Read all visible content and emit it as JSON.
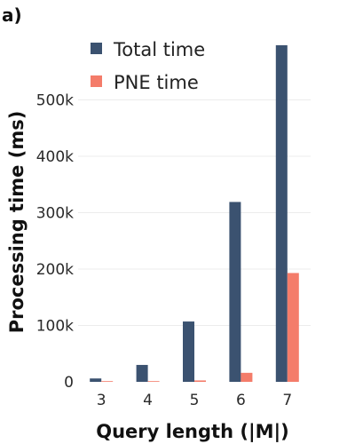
{
  "panel_label": "a)",
  "chart_data": {
    "type": "bar",
    "categories": [
      "3",
      "4",
      "5",
      "6",
      "7"
    ],
    "series": [
      {
        "name": "Total time",
        "values": [
          6000,
          30000,
          107000,
          319000,
          597000
        ],
        "color": "#3b5270"
      },
      {
        "name": "PNE time",
        "values": [
          300,
          1000,
          2500,
          16000,
          193000
        ],
        "color": "#f47c6a"
      }
    ],
    "title": "",
    "xlabel": "Query length (|M|)",
    "ylabel": "Processing time (ms)",
    "ylim": [
      0,
      600000
    ],
    "yticks": [
      0,
      100000,
      200000,
      300000,
      400000,
      500000
    ],
    "ytick_labels": [
      "0",
      "100k",
      "200k",
      "300k",
      "400k",
      "500k"
    ],
    "grid": true,
    "legend_position": "top-left"
  }
}
